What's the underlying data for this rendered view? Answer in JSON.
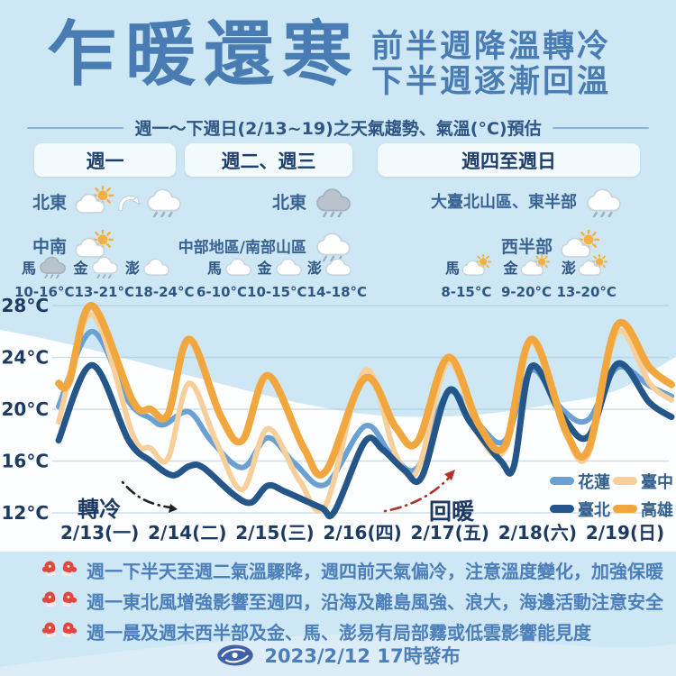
{
  "header": {
    "title": "乍暖還寒",
    "subtitle_line1": "前半週降溫轉冷",
    "subtitle_line2": "下半週逐漸回溫",
    "period_caption": "週一～下週日(2/13~19)之天氣趨勢、氣溫(°C)預估"
  },
  "forecast": {
    "columns": [
      {
        "header": "週一",
        "regions": [
          {
            "label": "北東",
            "icons": [
              "sun-cloud",
              "arrow-transition",
              "cloud-rain"
            ]
          },
          {
            "label": "中南",
            "icons": [
              "sun-cloud"
            ]
          }
        ],
        "islands": [
          {
            "name": "馬",
            "icon": "cloud-rain-dark",
            "temp": "10-16°C"
          },
          {
            "name": "金",
            "icon": "cloud-rain",
            "temp": "13-21°C"
          },
          {
            "name": "澎",
            "icon": "cloud",
            "temp": "18-24°C"
          }
        ]
      },
      {
        "header": "週二、週三",
        "regions": [
          {
            "label": "北東",
            "icons": [
              "cloud-rain-dark"
            ]
          },
          {
            "label": "中部地區/南部山區",
            "icons": [
              "cloud-rain"
            ]
          }
        ],
        "islands": [
          {
            "name": "馬",
            "icon": "cloud",
            "temp": "6-10°C"
          },
          {
            "name": "金",
            "icon": "cloud",
            "temp": "10-15°C"
          },
          {
            "name": "澎",
            "icon": "cloud",
            "temp": "14-18°C"
          }
        ]
      },
      {
        "header": "週四至週日",
        "regions": [
          {
            "label": "大臺北山區、東半部",
            "icons": [
              "cloud-rain"
            ]
          },
          {
            "label": "西半部",
            "icons": [
              "sun-cloud"
            ]
          }
        ],
        "islands": [
          {
            "name": "馬",
            "icon": "sun-cloud",
            "temp": "8-15°C"
          },
          {
            "name": "金",
            "icon": "sun-cloud",
            "temp": "9-20°C"
          },
          {
            "name": "澎",
            "icon": "sun-cloud",
            "temp": "13-20°C"
          }
        ]
      }
    ]
  },
  "chart_data": {
    "type": "line",
    "title": "週一～下週日(2/13~19)之天氣趨勢、氣溫(°C)預估",
    "xlabel": "",
    "ylabel": "氣溫(°C)",
    "ylim": [
      12,
      28
    ],
    "yticks": [
      28,
      24,
      20,
      16,
      12
    ],
    "ytick_labels": [
      "28°C",
      "24°C",
      "20°C",
      "16°C",
      "12°C"
    ],
    "x_labels": [
      "2/13(一)",
      "2/14(二)",
      "2/15(三)",
      "2/16(四)",
      "2/17(五)",
      "2/18(六)",
      "2/19(日)"
    ],
    "grid": true,
    "legend_position": "bottom-right",
    "annotations": [
      {
        "text": "轉冷",
        "color": "#16385f",
        "arrow": "down-right"
      },
      {
        "text": "回暖",
        "color": "#c13a2c",
        "arrow": "up-right"
      }
    ],
    "series": [
      {
        "name": "花蓮",
        "color": "#6ba0d3",
        "width": 6,
        "points": [
          [
            0,
            20.2
          ],
          [
            0.38,
            26
          ],
          [
            0.8,
            20.6
          ],
          [
            1.05,
            19.3
          ],
          [
            1.2,
            18.8
          ],
          [
            1.49,
            19.8
          ],
          [
            1.75,
            17.5
          ],
          [
            2.1,
            15.5
          ],
          [
            2.39,
            17.8
          ],
          [
            2.7,
            15.8
          ],
          [
            3.05,
            14.2
          ],
          [
            3.5,
            18.7
          ],
          [
            3.8,
            16.5
          ],
          [
            4.1,
            15.5
          ],
          [
            4.45,
            21.3
          ],
          [
            4.8,
            18.8
          ],
          [
            5.1,
            17.6
          ],
          [
            5.4,
            23
          ],
          [
            5.75,
            20
          ],
          [
            6.05,
            19.2
          ],
          [
            6.38,
            23.2
          ],
          [
            6.75,
            21.8
          ],
          [
            7,
            21
          ]
        ]
      },
      {
        "name": "臺中",
        "color": "#f6cf9b",
        "width": 6,
        "points": [
          [
            0,
            19
          ],
          [
            0.38,
            27.3
          ],
          [
            0.85,
            18
          ],
          [
            1.05,
            17
          ],
          [
            1.25,
            16.2
          ],
          [
            1.49,
            22
          ],
          [
            1.8,
            17.5
          ],
          [
            2.1,
            13.8
          ],
          [
            2.39,
            18.5
          ],
          [
            2.75,
            14.5
          ],
          [
            3.05,
            12.6
          ],
          [
            3.5,
            23
          ],
          [
            3.85,
            16.5
          ],
          [
            4.1,
            15.3
          ],
          [
            4.45,
            23.6
          ],
          [
            4.8,
            18
          ],
          [
            5.1,
            16.9
          ],
          [
            5.4,
            25.1
          ],
          [
            5.8,
            18
          ],
          [
            6.05,
            16.5
          ],
          [
            6.38,
            25.9
          ],
          [
            6.75,
            22
          ],
          [
            7,
            20.7
          ]
        ]
      },
      {
        "name": "臺北",
        "color": "#24568a",
        "width": 7,
        "points": [
          [
            0,
            17.6
          ],
          [
            0.38,
            23.4
          ],
          [
            0.8,
            17.6
          ],
          [
            1.05,
            16
          ],
          [
            1.3,
            14.9
          ],
          [
            1.49,
            15.6
          ],
          [
            1.65,
            15.5
          ],
          [
            2,
            13.4
          ],
          [
            2.2,
            12.8
          ],
          [
            2.39,
            14.1
          ],
          [
            2.6,
            13.6
          ],
          [
            3,
            12.4
          ],
          [
            3.15,
            12.1
          ],
          [
            3.5,
            17.5
          ],
          [
            3.7,
            16.9
          ],
          [
            3.95,
            15.3
          ],
          [
            4.15,
            14.8
          ],
          [
            4.45,
            21.4
          ],
          [
            4.7,
            19
          ],
          [
            5.05,
            16
          ],
          [
            5.2,
            15.6
          ],
          [
            5.4,
            23.3
          ],
          [
            5.75,
            19.5
          ],
          [
            6.05,
            17.9
          ],
          [
            6.38,
            23.5
          ],
          [
            6.75,
            20.5
          ],
          [
            7,
            19.4
          ]
        ]
      },
      {
        "name": "高雄",
        "color": "#f2a73e",
        "width": 8,
        "points": [
          [
            0,
            22
          ],
          [
            0.12,
            22.1
          ],
          [
            0.38,
            28
          ],
          [
            0.85,
            20.6
          ],
          [
            1.05,
            20
          ],
          [
            1.25,
            19.6
          ],
          [
            1.49,
            25.4
          ],
          [
            1.85,
            19.5
          ],
          [
            2.1,
            17.6
          ],
          [
            2.39,
            22.6
          ],
          [
            2.8,
            17
          ],
          [
            3.05,
            15.2
          ],
          [
            3.5,
            22.4
          ],
          [
            3.85,
            18.6
          ],
          [
            4.1,
            17.5
          ],
          [
            4.45,
            24
          ],
          [
            4.8,
            18.8
          ],
          [
            5.1,
            17.2
          ],
          [
            5.4,
            25.4
          ],
          [
            5.8,
            18.2
          ],
          [
            6.05,
            16.9
          ],
          [
            6.38,
            26.5
          ],
          [
            6.75,
            23.2
          ],
          [
            7,
            21.9
          ]
        ]
      }
    ]
  },
  "notes": [
    {
      "icon": "mittens",
      "text": "週一下半天至週二氣溫驟降，週四前天氣偏冷，注意溫度變化，加強保暖"
    },
    {
      "icon": "mittens",
      "text": "週一東北風增強影響至週四，沿海及離島風強、浪大，海邊活動注意安全"
    },
    {
      "icon": "mittens",
      "text": "週一晨及週末西半部及金、馬、澎易有局部霧或低雲影響能見度"
    }
  ],
  "footer": {
    "logo": "cwb-logo",
    "issued": "2023/2/12 17時發布"
  },
  "colors": {
    "background": "#cde7f4",
    "accent_blue": "#4a7cb4",
    "navy": "#1e3f6e",
    "note_blue": "#4c7eb9",
    "warm_red": "#c13a2c",
    "hualien": "#6ba0d3",
    "taichung": "#f6cf9b",
    "taipei": "#24568a",
    "kaohsiung": "#f2a73e"
  }
}
